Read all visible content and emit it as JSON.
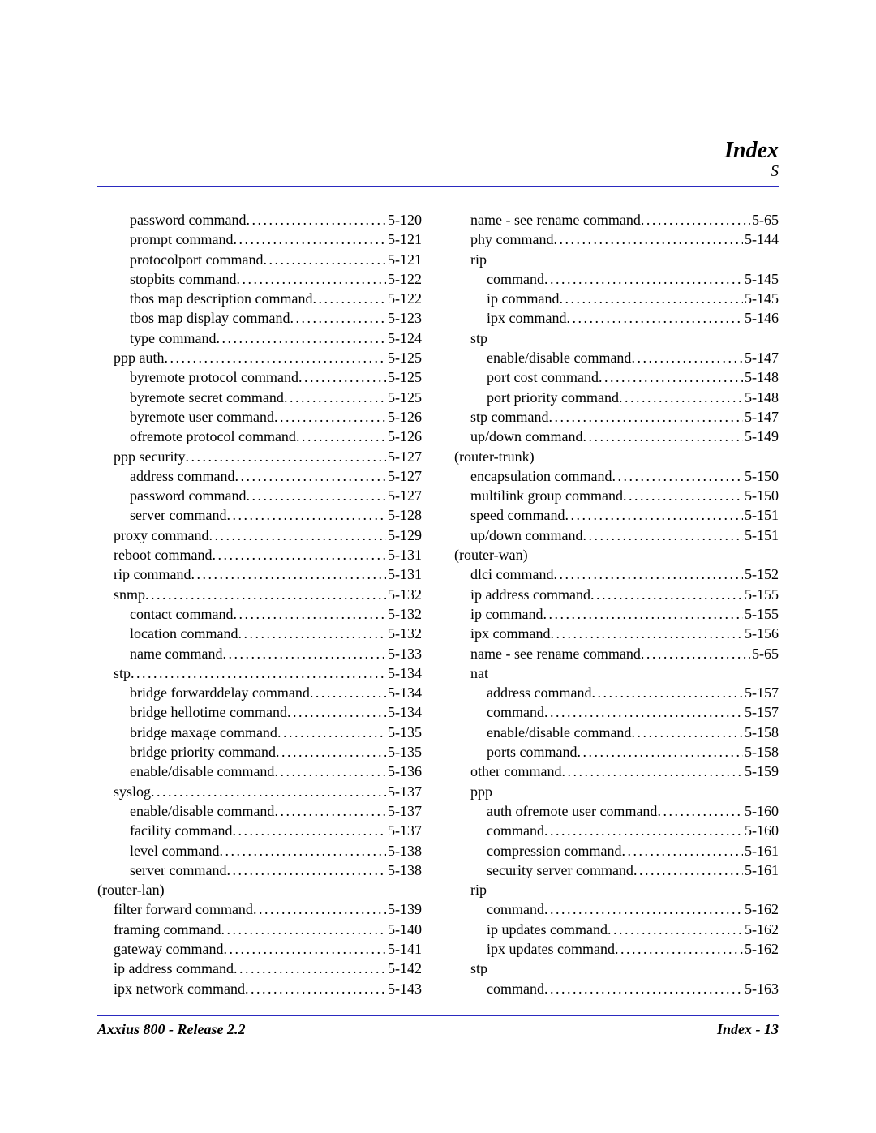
{
  "header": {
    "title": "Index",
    "letter": "S"
  },
  "footer": {
    "left": "Axxius 800 - Release 2.2",
    "right": "Index - 13"
  },
  "left_column": [
    {
      "label": "password command",
      "page": "5-120",
      "indent": 2
    },
    {
      "label": "prompt command",
      "page": "5-121",
      "indent": 2
    },
    {
      "label": "protocolport command",
      "page": "5-121",
      "indent": 2
    },
    {
      "label": "stopbits command",
      "page": "5-122",
      "indent": 2
    },
    {
      "label": "tbos map description command",
      "page": "5-122",
      "indent": 2
    },
    {
      "label": "tbos map display command",
      "page": "5-123",
      "indent": 2
    },
    {
      "label": "type command",
      "page": "5-124",
      "indent": 2
    },
    {
      "label": "ppp auth",
      "page": "5-125",
      "indent": 1
    },
    {
      "label": "byremote protocol command",
      "page": "5-125",
      "indent": 2
    },
    {
      "label": "byremote secret command",
      "page": "5-125",
      "indent": 2
    },
    {
      "label": "byremote user command",
      "page": "5-126",
      "indent": 2
    },
    {
      "label": "ofremote protocol command",
      "page": "5-126",
      "indent": 2
    },
    {
      "label": "ppp security",
      "page": "5-127",
      "indent": 1
    },
    {
      "label": "address command",
      "page": "5-127",
      "indent": 2
    },
    {
      "label": "password command",
      "page": "5-127",
      "indent": 2
    },
    {
      "label": "server command",
      "page": "5-128",
      "indent": 2
    },
    {
      "label": "proxy command",
      "page": "5-129",
      "indent": 1
    },
    {
      "label": "reboot command",
      "page": "5-131",
      "indent": 1
    },
    {
      "label": "rip command",
      "page": "5-131",
      "indent": 1
    },
    {
      "label": "snmp",
      "page": "5-132",
      "indent": 1
    },
    {
      "label": "contact command",
      "page": "5-132",
      "indent": 2
    },
    {
      "label": "location command",
      "page": "5-132",
      "indent": 2
    },
    {
      "label": "name command",
      "page": "5-133",
      "indent": 2
    },
    {
      "label": "stp",
      "page": "5-134",
      "indent": 1
    },
    {
      "label": "bridge forwarddelay command",
      "page": "5-134",
      "indent": 2
    },
    {
      "label": "bridge hellotime command",
      "page": "5-134",
      "indent": 2
    },
    {
      "label": "bridge maxage command",
      "page": "5-135",
      "indent": 2
    },
    {
      "label": "bridge priority command",
      "page": "5-135",
      "indent": 2
    },
    {
      "label": "enable/disable command",
      "page": "5-136",
      "indent": 2
    },
    {
      "label": "syslog",
      "page": "5-137",
      "indent": 1
    },
    {
      "label": "enable/disable command",
      "page": "5-137",
      "indent": 2
    },
    {
      "label": "facility command",
      "page": "5-137",
      "indent": 2
    },
    {
      "label": "level command",
      "page": "5-138",
      "indent": 2
    },
    {
      "label": "server command",
      "page": "5-138",
      "indent": 2
    },
    {
      "label": "(router-lan)",
      "page": "",
      "indent": 0,
      "no_page": true
    },
    {
      "label": "filter forward command",
      "page": "5-139",
      "indent": 1
    },
    {
      "label": "framing command",
      "page": "5-140",
      "indent": 1
    },
    {
      "label": "gateway command",
      "page": "5-141",
      "indent": 1
    },
    {
      "label": "ip address command",
      "page": "5-142",
      "indent": 1
    },
    {
      "label": "ipx network command",
      "page": "5-143",
      "indent": 1
    }
  ],
  "right_column": [
    {
      "label": "name - see rename command",
      "page": "5-65",
      "indent": 1
    },
    {
      "label": "phy command",
      "page": "5-144",
      "indent": 1
    },
    {
      "label": "rip",
      "page": "",
      "indent": 1,
      "no_page": true
    },
    {
      "label": "command",
      "page": "5-145",
      "indent": 2
    },
    {
      "label": "ip command",
      "page": "5-145",
      "indent": 2
    },
    {
      "label": "ipx command",
      "page": "5-146",
      "indent": 2
    },
    {
      "label": "stp",
      "page": "",
      "indent": 1,
      "no_page": true
    },
    {
      "label": "enable/disable command",
      "page": "5-147",
      "indent": 2
    },
    {
      "label": "port cost command",
      "page": "5-148",
      "indent": 2
    },
    {
      "label": "port priority command",
      "page": "5-148",
      "indent": 2
    },
    {
      "label": "stp command",
      "page": "5-147",
      "indent": 1
    },
    {
      "label": "up/down command",
      "page": "5-149",
      "indent": 1
    },
    {
      "label": "(router-trunk)",
      "page": "",
      "indent": 0,
      "no_page": true
    },
    {
      "label": "encapsulation command",
      "page": "5-150",
      "indent": 1
    },
    {
      "label": "multilink group command",
      "page": "5-150",
      "indent": 1
    },
    {
      "label": "speed command",
      "page": "5-151",
      "indent": 1
    },
    {
      "label": "up/down command",
      "page": "5-151",
      "indent": 1
    },
    {
      "label": "(router-wan)",
      "page": "",
      "indent": 0,
      "no_page": true
    },
    {
      "label": "dlci command",
      "page": "5-152",
      "indent": 1
    },
    {
      "label": "ip address command",
      "page": "5-155",
      "indent": 1
    },
    {
      "label": "ip command",
      "page": "5-155",
      "indent": 1
    },
    {
      "label": "ipx command",
      "page": "5-156",
      "indent": 1
    },
    {
      "label": "name - see rename command",
      "page": "5-65",
      "indent": 1
    },
    {
      "label": "nat",
      "page": "",
      "indent": 1,
      "no_page": true
    },
    {
      "label": "address command",
      "page": "5-157",
      "indent": 2
    },
    {
      "label": "command",
      "page": "5-157",
      "indent": 2
    },
    {
      "label": "enable/disable command",
      "page": "5-158",
      "indent": 2
    },
    {
      "label": "ports command",
      "page": "5-158",
      "indent": 2
    },
    {
      "label": "other command",
      "page": "5-159",
      "indent": 1
    },
    {
      "label": "ppp",
      "page": "",
      "indent": 1,
      "no_page": true
    },
    {
      "label": "auth ofremote user command",
      "page": "5-160",
      "indent": 2
    },
    {
      "label": "command",
      "page": "5-160",
      "indent": 2
    },
    {
      "label": "compression command",
      "page": "5-161",
      "indent": 2
    },
    {
      "label": "security server command",
      "page": "5-161",
      "indent": 2
    },
    {
      "label": "rip",
      "page": "",
      "indent": 1,
      "no_page": true
    },
    {
      "label": "command",
      "page": "5-162",
      "indent": 2
    },
    {
      "label": "ip updates command",
      "page": "5-162",
      "indent": 2
    },
    {
      "label": "ipx updates command",
      "page": "5-162",
      "indent": 2
    },
    {
      "label": "stp",
      "page": "",
      "indent": 1,
      "no_page": true
    },
    {
      "label": "command",
      "page": "5-163",
      "indent": 2
    }
  ]
}
